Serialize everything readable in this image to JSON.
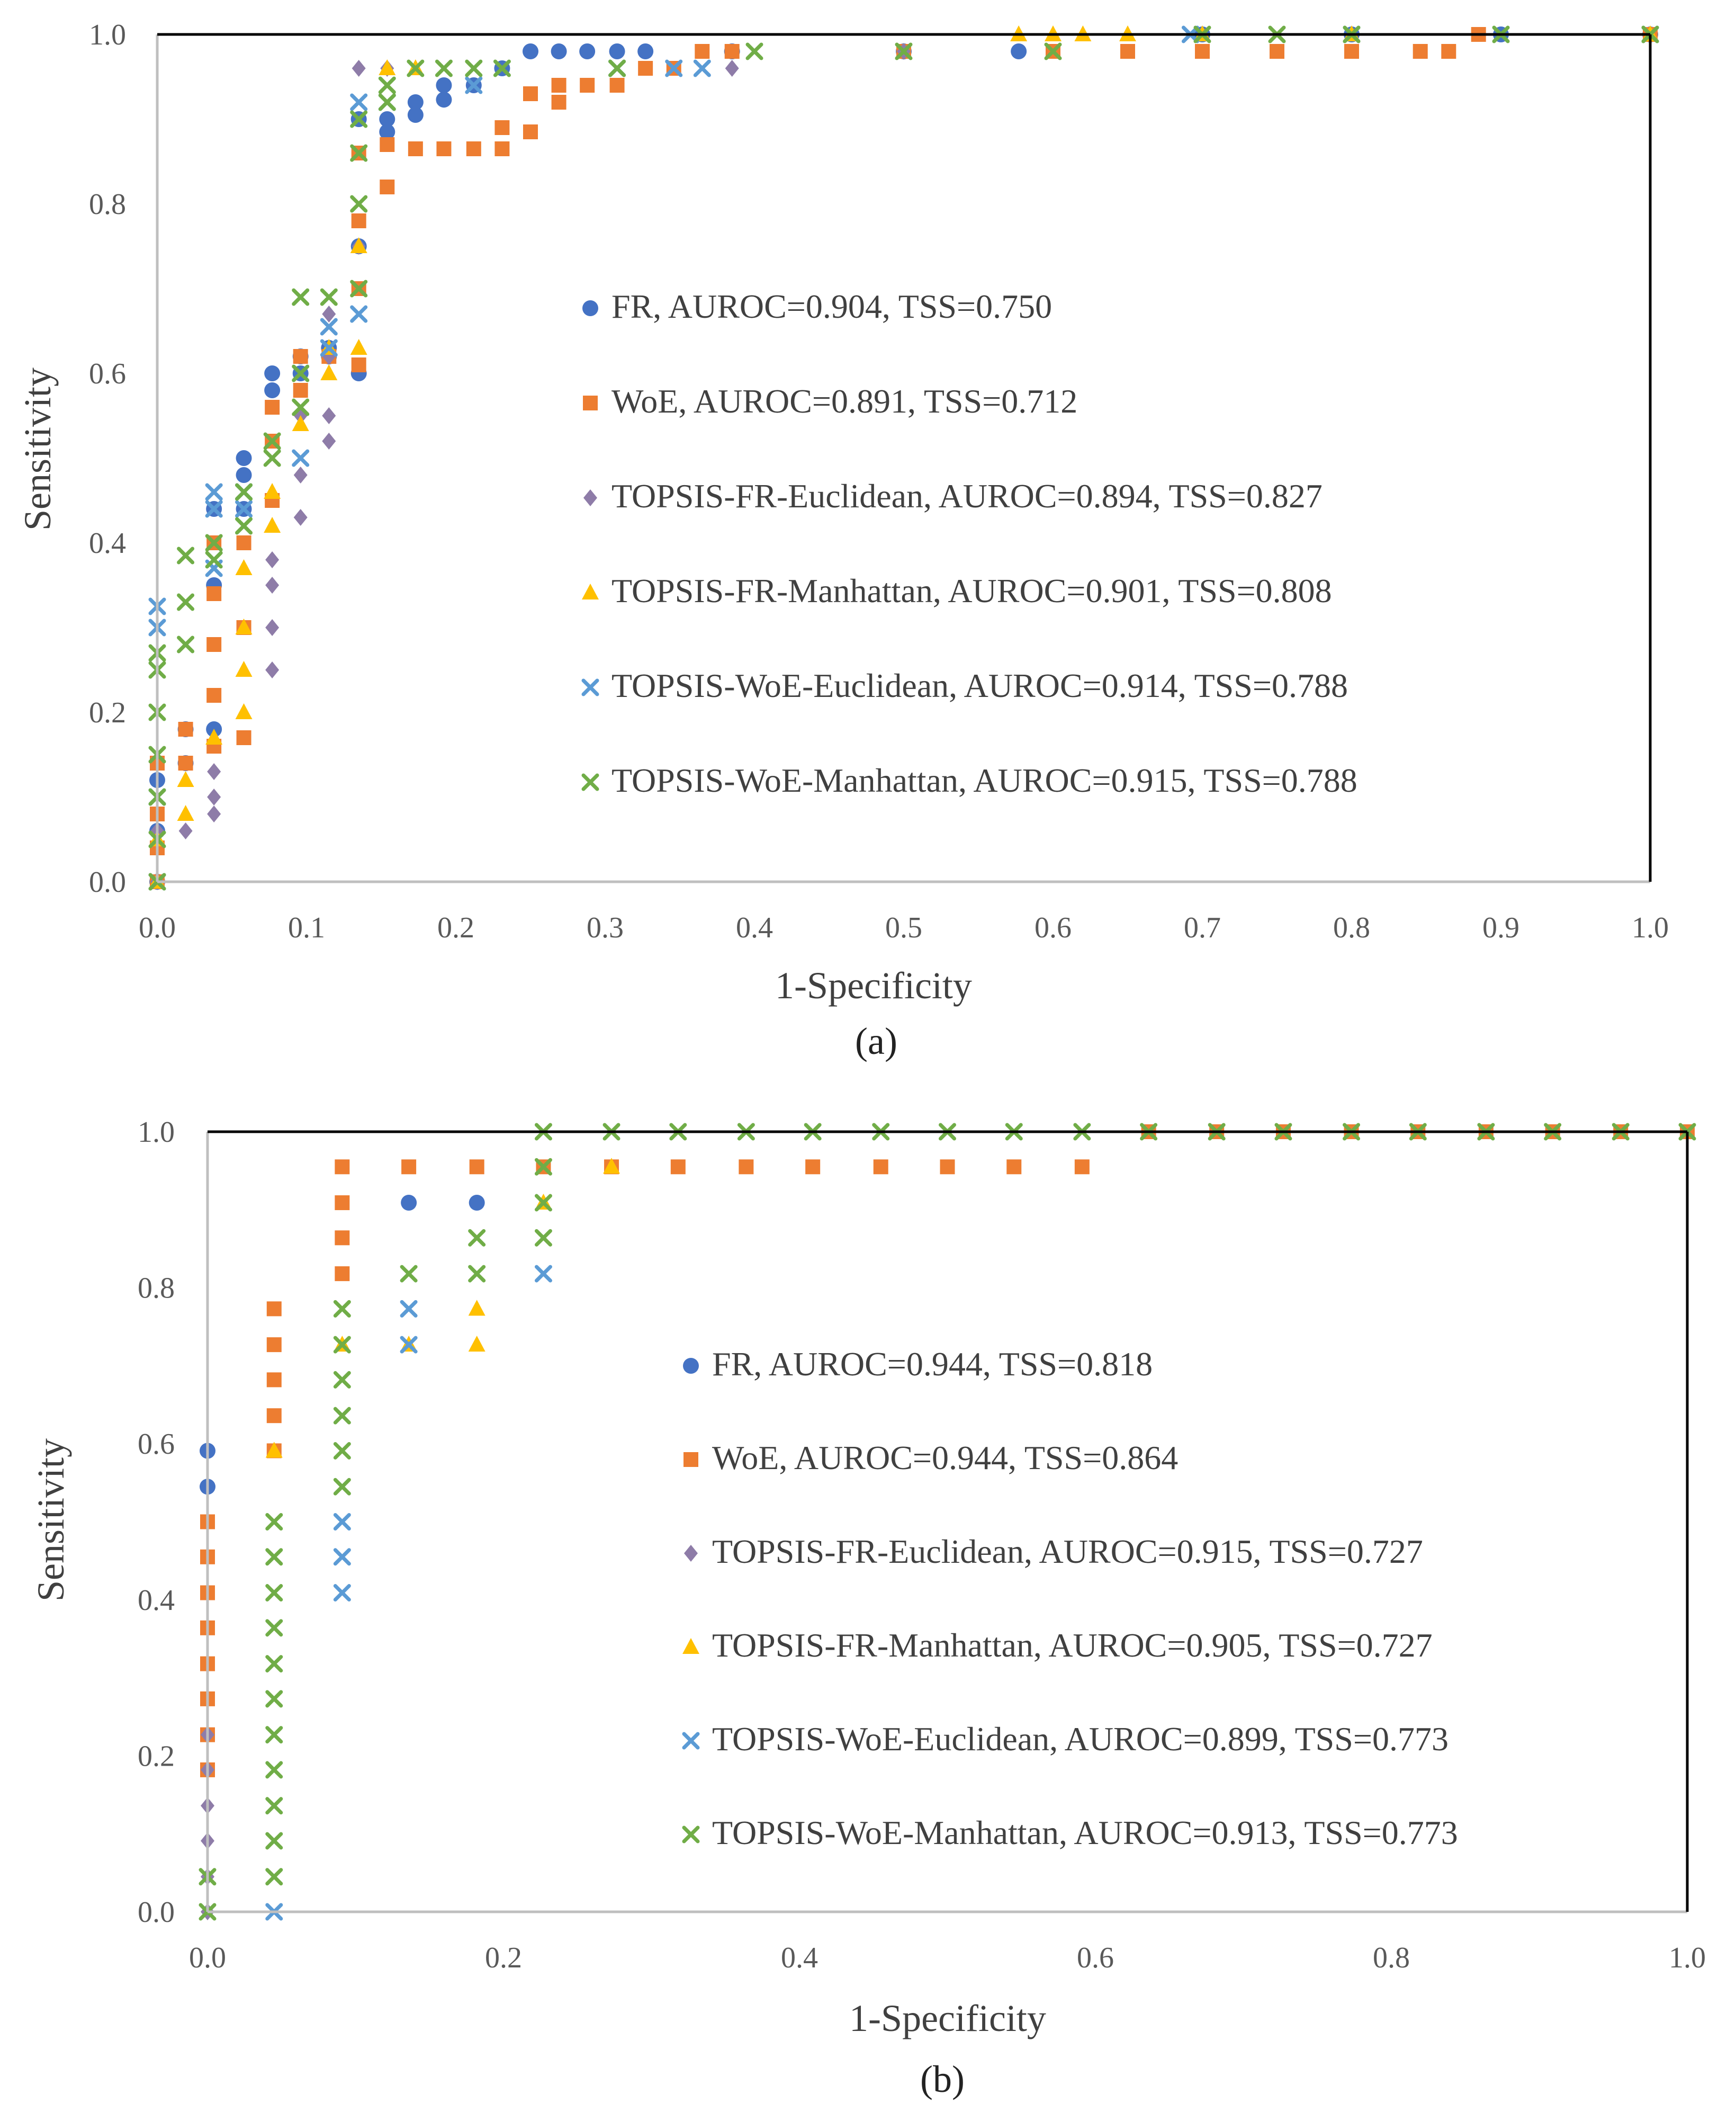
{
  "chart_data": [
    {
      "type": "scatter",
      "caption": "(a)",
      "xlabel": "1-Specificity",
      "ylabel": "Sensitivity",
      "xlim": [
        0,
        1
      ],
      "ylim": [
        0,
        1
      ],
      "x_ticks": [
        "0.0",
        "0.1",
        "0.2",
        "0.3",
        "0.4",
        "0.5",
        "0.6",
        "0.7",
        "0.8",
        "0.9",
        "1.0"
      ],
      "y_ticks": [
        "0.0",
        "0.2",
        "0.4",
        "0.6",
        "0.8",
        "1.0"
      ],
      "grid": false,
      "legend_position": "center",
      "series": [
        {
          "name": "FR",
          "label": "FR, AUROC=0.904, TSS=0.750",
          "marker": "circle",
          "color": "#4472C4",
          "x": [
            0,
            0,
            0,
            0.019,
            0.019,
            0.038,
            0.038,
            0.038,
            0.058,
            0.058,
            0.058,
            0.077,
            0.077,
            0.096,
            0.096,
            0.115,
            0.115,
            0.135,
            0.135,
            0.135,
            0.154,
            0.154,
            0.173,
            0.173,
            0.192,
            0.192,
            0.212,
            0.231,
            0.25,
            0.269,
            0.288,
            0.308,
            0.327,
            0.385,
            0.5,
            0.577,
            0.7,
            0.8,
            0.9,
            1.0
          ],
          "y": [
            0,
            0.06,
            0.12,
            0.14,
            0.18,
            0.18,
            0.35,
            0.44,
            0.44,
            0.48,
            0.5,
            0.58,
            0.6,
            0.6,
            0.62,
            0.62,
            0.63,
            0.6,
            0.75,
            0.9,
            0.885,
            0.9,
            0.905,
            0.92,
            0.923,
            0.94,
            0.94,
            0.96,
            0.98,
            0.98,
            0.98,
            0.98,
            0.98,
            0.98,
            0.98,
            0.98,
            1.0,
            1.0,
            1.0,
            1.0
          ]
        },
        {
          "name": "WoE",
          "label": "WoE, AUROC=0.891, TSS=0.712",
          "marker": "square",
          "color": "#ED7D31",
          "x": [
            0,
            0,
            0,
            0,
            0.019,
            0.019,
            0.038,
            0.038,
            0.038,
            0.038,
            0.038,
            0.058,
            0.058,
            0.058,
            0.077,
            0.077,
            0.077,
            0.096,
            0.096,
            0.115,
            0.135,
            0.135,
            0.135,
            0.135,
            0.154,
            0.154,
            0.173,
            0.192,
            0.212,
            0.231,
            0.231,
            0.25,
            0.25,
            0.269,
            0.269,
            0.288,
            0.308,
            0.327,
            0.346,
            0.365,
            0.385,
            0.5,
            0.6,
            0.65,
            0.7,
            0.75,
            0.8,
            0.846,
            0.865,
            0.885,
            1.0
          ],
          "y": [
            0,
            0.04,
            0.08,
            0.14,
            0.14,
            0.18,
            0.16,
            0.22,
            0.28,
            0.34,
            0.4,
            0.17,
            0.3,
            0.4,
            0.45,
            0.52,
            0.56,
            0.58,
            0.62,
            0.62,
            0.61,
            0.7,
            0.78,
            0.86,
            0.82,
            0.87,
            0.865,
            0.865,
            0.865,
            0.865,
            0.89,
            0.885,
            0.93,
            0.92,
            0.94,
            0.94,
            0.94,
            0.96,
            0.96,
            0.98,
            0.98,
            0.98,
            0.98,
            0.98,
            0.98,
            0.98,
            0.98,
            0.98,
            0.98,
            1.0,
            1.0
          ]
        },
        {
          "name": "TOPSIS-FR-Euclidean",
          "label": "TOPSIS-FR-Euclidean, AUROC=0.894, TSS=0.827",
          "marker": "diamond",
          "color": "#8E7CA8",
          "x": [
            0,
            0,
            0.019,
            0.038,
            0.038,
            0.038,
            0.077,
            0.077,
            0.077,
            0.077,
            0.096,
            0.096,
            0.096,
            0.115,
            0.115,
            0.115,
            0.115,
            0.135,
            0.135,
            0.154,
            0.385,
            0.5
          ],
          "y": [
            0,
            0.06,
            0.06,
            0.08,
            0.1,
            0.13,
            0.25,
            0.3,
            0.35,
            0.38,
            0.43,
            0.48,
            0.55,
            0.52,
            0.55,
            0.62,
            0.67,
            0.75,
            0.96,
            0.96,
            0.96,
            0.98
          ]
        },
        {
          "name": "TOPSIS-FR-Manhattan",
          "label": "TOPSIS-FR-Manhattan, AUROC=0.901, TSS=0.808",
          "marker": "triangle",
          "color": "#FFC000",
          "x": [
            0,
            0,
            0.019,
            0.019,
            0.038,
            0.058,
            0.058,
            0.058,
            0.058,
            0.077,
            0.077,
            0.096,
            0.115,
            0.115,
            0.135,
            0.135,
            0.154,
            0.173,
            0.577,
            0.6,
            0.62,
            0.65,
            0.7,
            0.8,
            1.0
          ],
          "y": [
            0,
            0.05,
            0.08,
            0.12,
            0.17,
            0.2,
            0.25,
            0.3,
            0.37,
            0.42,
            0.46,
            0.54,
            0.6,
            0.63,
            0.63,
            0.75,
            0.96,
            0.96,
            1.0,
            1.0,
            1.0,
            1.0,
            1.0,
            1.0,
            1.0
          ]
        },
        {
          "name": "TOPSIS-WoE-Euclidean",
          "label": "TOPSIS-WoE-Euclidean, AUROC=0.914, TSS=0.788",
          "marker": "x",
          "color": "#5B9BD5",
          "x": [
            0,
            0,
            0,
            0,
            0.038,
            0.038,
            0.038,
            0.058,
            0.058,
            0.096,
            0.115,
            0.115,
            0.135,
            0.135,
            0.154,
            0.212,
            0.308,
            0.346,
            0.365,
            0.692,
            0.8,
            1.0
          ],
          "y": [
            0,
            0.1,
            0.3,
            0.325,
            0.37,
            0.44,
            0.46,
            0.44,
            0.46,
            0.5,
            0.63,
            0.655,
            0.67,
            0.92,
            0.92,
            0.94,
            0.96,
            0.96,
            0.96,
            1.0,
            1.0,
            1.0
          ]
        },
        {
          "name": "TOPSIS-WoE-Manhattan",
          "label": "TOPSIS-WoE-Manhattan, AUROC=0.915, TSS=0.788",
          "marker": "x",
          "color": "#70AD47",
          "x": [
            0,
            0,
            0,
            0,
            0,
            0,
            0,
            0.019,
            0.019,
            0.019,
            0.038,
            0.038,
            0.058,
            0.058,
            0.077,
            0.077,
            0.096,
            0.096,
            0.096,
            0.115,
            0.135,
            0.135,
            0.135,
            0.135,
            0.154,
            0.154,
            0.173,
            0.192,
            0.212,
            0.231,
            0.308,
            0.4,
            0.5,
            0.6,
            0.7,
            0.75,
            0.8,
            0.9,
            1.0
          ],
          "y": [
            0,
            0.05,
            0.1,
            0.15,
            0.2,
            0.25,
            0.27,
            0.28,
            0.33,
            0.385,
            0.38,
            0.4,
            0.42,
            0.46,
            0.5,
            0.52,
            0.56,
            0.6,
            0.69,
            0.69,
            0.7,
            0.8,
            0.86,
            0.9,
            0.92,
            0.94,
            0.96,
            0.96,
            0.96,
            0.96,
            0.96,
            0.98,
            0.98,
            0.98,
            1.0,
            1.0,
            1.0,
            1.0,
            1.0
          ]
        }
      ]
    },
    {
      "type": "scatter",
      "caption": "(b)",
      "xlabel": "1-Specificity",
      "ylabel": "Sensitivity",
      "xlim": [
        0,
        1
      ],
      "ylim": [
        0,
        1
      ],
      "x_ticks": [
        "0.0",
        "0.2",
        "0.4",
        "0.6",
        "0.8",
        "1.0"
      ],
      "y_ticks": [
        "0.0",
        "0.2",
        "0.4",
        "0.6",
        "0.8",
        "1.0"
      ],
      "grid": false,
      "legend_position": "center-right",
      "series": [
        {
          "name": "FR",
          "label": "FR, AUROC=0.944, TSS=0.818",
          "marker": "circle",
          "color": "#4472C4",
          "x": [
            0,
            0,
            0.136,
            0.182
          ],
          "y": [
            0.545,
            0.591,
            0.909,
            0.909
          ]
        },
        {
          "name": "WoE",
          "label": "WoE, AUROC=0.944, TSS=0.864",
          "marker": "square",
          "color": "#ED7D31",
          "x": [
            0,
            0,
            0,
            0,
            0,
            0,
            0,
            0,
            0.045,
            0.045,
            0.045,
            0.045,
            0.045,
            0.091,
            0.091,
            0.091,
            0.091,
            0.136,
            0.182,
            0.227,
            0.273,
            0.318,
            0.364,
            0.409,
            0.455,
            0.5,
            0.545,
            0.591,
            0.636,
            0.682,
            0.727,
            0.773,
            0.818,
            0.864,
            0.909,
            0.955,
            1.0
          ],
          "y": [
            0.182,
            0.227,
            0.273,
            0.318,
            0.364,
            0.409,
            0.455,
            0.5,
            0.591,
            0.636,
            0.682,
            0.727,
            0.773,
            0.818,
            0.864,
            0.909,
            0.955,
            0.955,
            0.955,
            0.955,
            0.955,
            0.955,
            0.955,
            0.955,
            0.955,
            0.955,
            0.955,
            0.955,
            1.0,
            1.0,
            1.0,
            1.0,
            1.0,
            1.0,
            1.0,
            1.0,
            1.0
          ]
        },
        {
          "name": "TOPSIS-FR-Euclidean",
          "label": "TOPSIS-FR-Euclidean, AUROC=0.915, TSS=0.727",
          "marker": "diamond",
          "color": "#8E7CA8",
          "x": [
            0,
            0,
            0,
            0,
            0,
            0
          ],
          "y": [
            0.045,
            0.091,
            0.136,
            0.182,
            0.227,
            0.0
          ]
        },
        {
          "name": "TOPSIS-FR-Manhattan",
          "label": "TOPSIS-FR-Manhattan, AUROC=0.905, TSS=0.727",
          "marker": "triangle",
          "color": "#FFC000",
          "x": [
            0.045,
            0.091,
            0.136,
            0.182,
            0.182,
            0.227,
            0.273
          ],
          "y": [
            0.591,
            0.727,
            0.727,
            0.727,
            0.773,
            0.909,
            0.955
          ]
        },
        {
          "name": "TOPSIS-WoE-Euclidean",
          "label": "TOPSIS-WoE-Euclidean, AUROC=0.899, TSS=0.773",
          "marker": "x",
          "color": "#5B9BD5",
          "x": [
            0.045,
            0.091,
            0.091,
            0.091,
            0.136,
            0.136,
            0.227
          ],
          "y": [
            0,
            0.409,
            0.455,
            0.5,
            0.727,
            0.773,
            0.818
          ]
        },
        {
          "name": "TOPSIS-WoE-Manhattan",
          "label": "TOPSIS-WoE-Manhattan, AUROC=0.913, TSS=0.773",
          "marker": "x",
          "color": "#70AD47",
          "x": [
            0,
            0,
            0.045,
            0.045,
            0.045,
            0.045,
            0.045,
            0.045,
            0.045,
            0.045,
            0.045,
            0.045,
            0.045,
            0.091,
            0.091,
            0.091,
            0.091,
            0.091,
            0.091,
            0.136,
            0.182,
            0.182,
            0.227,
            0.227,
            0.227,
            0.227,
            0.273,
            0.318,
            0.364,
            0.409,
            0.455,
            0.5,
            0.545,
            0.591,
            0.636,
            0.682,
            0.727,
            0.773,
            0.818,
            0.864,
            0.909,
            0.955,
            1.0
          ],
          "y": [
            0,
            0.045,
            0.045,
            0.091,
            0.136,
            0.182,
            0.227,
            0.273,
            0.318,
            0.364,
            0.409,
            0.455,
            0.5,
            0.545,
            0.591,
            0.636,
            0.682,
            0.727,
            0.773,
            0.818,
            0.818,
            0.864,
            0.864,
            0.909,
            0.955,
            1.0,
            1.0,
            1.0,
            1.0,
            1.0,
            1.0,
            1.0,
            1.0,
            1.0,
            1.0,
            1.0,
            1.0,
            1.0,
            1.0,
            1.0,
            1.0,
            1.0,
            1.0
          ]
        }
      ]
    }
  ]
}
